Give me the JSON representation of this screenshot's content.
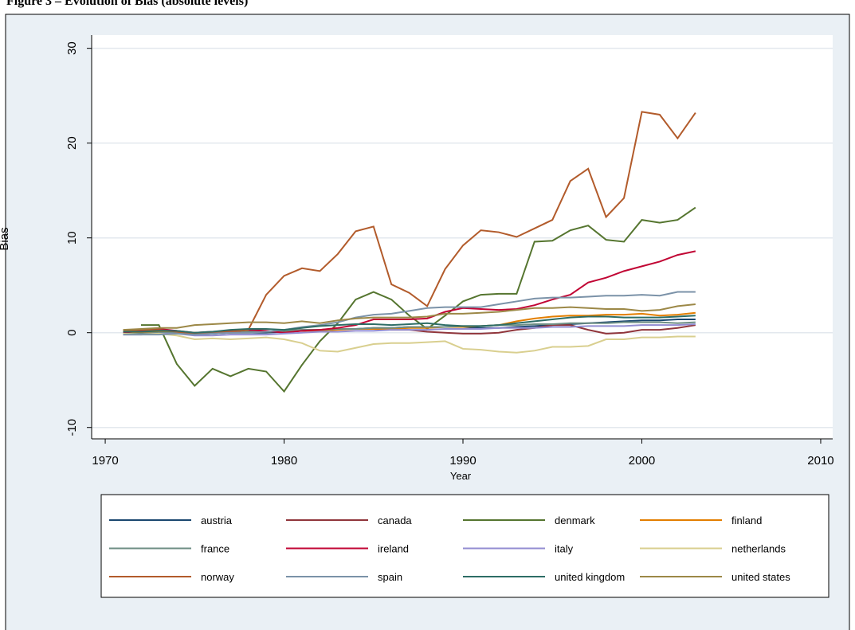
{
  "chart_data": {
    "type": "line",
    "title": "Figure 3 – Evolution of Bias (absolute levels)",
    "x_label": "Year",
    "y_label": "Bias",
    "x": [
      1971,
      1972,
      1973,
      1974,
      1975,
      1976,
      1977,
      1978,
      1979,
      1980,
      1981,
      1982,
      1983,
      1984,
      1985,
      1986,
      1987,
      1988,
      1989,
      1990,
      1991,
      1992,
      1993,
      1994,
      1995,
      1996,
      1997,
      1998,
      1999,
      2000,
      2001,
      2002,
      2003
    ],
    "xlim": [
      1969.24,
      2010.67
    ],
    "xticks": [
      1970,
      1980,
      1990,
      2000,
      2010
    ],
    "ylim": [
      -11.2,
      31.4
    ],
    "yticks": [
      -10,
      0,
      10,
      20,
      30
    ],
    "grid": true,
    "legend": "bottom",
    "series": [
      {
        "name": "austria",
        "color": "#1a476f",
        "values": [
          0,
          0,
          0.1,
          0,
          -0.2,
          -0.1,
          0,
          0,
          0,
          0.1,
          0.2,
          0.3,
          0.4,
          0.4,
          0.5,
          0.5,
          0.6,
          0.6,
          0.6,
          0.6,
          0.5,
          0.5,
          0.6,
          0.7,
          0.8,
          0.9,
          1,
          1.1,
          1.2,
          1.3,
          1.3,
          1.4,
          1.4
        ]
      },
      {
        "name": "canada",
        "color": "#90353b",
        "values": [
          0.1,
          0.2,
          0.3,
          0.2,
          0,
          0.1,
          0.2,
          0.2,
          0.1,
          0.2,
          0.3,
          0.3,
          0.4,
          0.4,
          0.4,
          0.3,
          0.3,
          0.1,
          0,
          -0.1,
          -0.1,
          0,
          0.3,
          0.5,
          0.8,
          0.8,
          0.3,
          -0.1,
          0,
          0.3,
          0.3,
          0.5,
          0.8
        ]
      },
      {
        "name": "denmark",
        "color": "#55752f",
        "values": [
          null,
          0.8,
          0.8,
          -3.3,
          -5.6,
          -3.8,
          -4.6,
          -3.8,
          -4.1,
          -6.2,
          -3.4,
          -0.9,
          1,
          3.5,
          4.3,
          3.5,
          1.8,
          0.4,
          1.8,
          3.3,
          4,
          4.1,
          4.1,
          9.6,
          9.7,
          10.8,
          11.3,
          9.8,
          9.6,
          11.9,
          11.6,
          11.9,
          13.2
        ]
      },
      {
        "name": "finland",
        "color": "#e37e00",
        "values": [
          0,
          0,
          0.1,
          0.1,
          0,
          0,
          0.1,
          0.1,
          0.1,
          0.2,
          0.2,
          0.2,
          0.3,
          0.4,
          0.4,
          0.4,
          0.5,
          0.5,
          0.6,
          0.6,
          0.7,
          0.8,
          1.2,
          1.5,
          1.7,
          1.8,
          1.8,
          1.9,
          1.9,
          2,
          1.8,
          1.9,
          2.1
        ]
      },
      {
        "name": "france",
        "color": "#6e8e84",
        "values": [
          -0.1,
          -0.1,
          0,
          0,
          -0.2,
          -0.1,
          0,
          0.1,
          0.1,
          0.2,
          0.3,
          0.3,
          0.4,
          0.4,
          0.5,
          0.5,
          0.6,
          0.6,
          0.6,
          0.7,
          0.7,
          0.8,
          0.8,
          0.9,
          0.9,
          1,
          1,
          1,
          1.1,
          1.1,
          1.1,
          1,
          1.1
        ]
      },
      {
        "name": "ireland",
        "color": "#c10534",
        "values": [
          0,
          0.2,
          0.4,
          0.2,
          -0.1,
          0,
          0.1,
          0.3,
          0.2,
          0,
          0.2,
          0.3,
          0.5,
          0.8,
          1.4,
          1.4,
          1.4,
          1.5,
          2.2,
          2.6,
          2.5,
          2.4,
          2.5,
          2.9,
          3.5,
          4,
          5.3,
          5.8,
          6.5,
          7,
          7.5,
          8.2,
          8.6
        ]
      },
      {
        "name": "italy",
        "color": "#938dd2",
        "values": [
          -0.2,
          -0.2,
          -0.1,
          -0.1,
          -0.3,
          -0.3,
          -0.2,
          -0.2,
          -0.2,
          -0.1,
          0,
          0.1,
          0.1,
          0.2,
          0.2,
          0.3,
          0.3,
          0.3,
          0.4,
          0.4,
          0.4,
          0.5,
          0.5,
          0.5,
          0.6,
          0.6,
          0.7,
          0.7,
          0.7,
          0.8,
          0.8,
          0.8,
          0.9
        ]
      },
      {
        "name": "netherlands",
        "color": "#d9cf8f",
        "values": [
          -0.1,
          -0.2,
          -0.1,
          -0.3,
          -0.7,
          -0.6,
          -0.7,
          -0.6,
          -0.5,
          -0.7,
          -1.1,
          -1.9,
          -2,
          -1.6,
          -1.2,
          -1.1,
          -1.1,
          -1,
          -0.9,
          -1.7,
          -1.8,
          -2,
          -2.1,
          -1.9,
          -1.5,
          -1.5,
          -1.4,
          -0.7,
          -0.7,
          -0.5,
          -0.5,
          -0.4,
          -0.4
        ]
      },
      {
        "name": "norway",
        "color": "#b25b2b",
        "values": [
          0.2,
          0.3,
          0.3,
          0.1,
          -0.1,
          0,
          0.1,
          0.3,
          4,
          6,
          6.8,
          6.5,
          8.3,
          10.7,
          11.2,
          5.1,
          4.2,
          2.8,
          6.7,
          9.2,
          10.8,
          10.6,
          10.1,
          11,
          11.9,
          16,
          17.3,
          12.2,
          14.2,
          23.3,
          23,
          20.5,
          23.2
        ]
      },
      {
        "name": "spain",
        "color": "#7b92a8",
        "values": [
          -0.2,
          -0.2,
          -0.2,
          -0.1,
          -0.2,
          -0.1,
          0,
          0,
          0.1,
          0.3,
          0.6,
          0.8,
          1.1,
          1.6,
          1.9,
          2,
          2.3,
          2.6,
          2.7,
          2.7,
          2.7,
          3,
          3.3,
          3.6,
          3.7,
          3.7,
          3.8,
          3.9,
          3.9,
          4,
          3.9,
          4.3,
          4.3
        ]
      },
      {
        "name": "united kingdom",
        "color": "#2d6d66",
        "values": [
          0.1,
          0.1,
          0.2,
          0.2,
          0,
          0.1,
          0.3,
          0.4,
          0.4,
          0.3,
          0.5,
          0.7,
          0.8,
          0.9,
          0.9,
          0.8,
          0.9,
          1,
          0.8,
          0.7,
          0.7,
          0.8,
          1,
          1.2,
          1.4,
          1.6,
          1.7,
          1.7,
          1.6,
          1.6,
          1.6,
          1.7,
          1.8
        ]
      },
      {
        "name": "united states",
        "color": "#9c8847",
        "values": [
          0.3,
          0.4,
          0.5,
          0.5,
          0.8,
          0.9,
          1,
          1.1,
          1.1,
          1,
          1.2,
          1,
          1.3,
          1.5,
          1.6,
          1.6,
          1.6,
          1.7,
          2,
          2,
          2.1,
          2.2,
          2.4,
          2.6,
          2.6,
          2.7,
          2.6,
          2.5,
          2.5,
          2.3,
          2.4,
          2.8,
          3
        ]
      }
    ]
  }
}
